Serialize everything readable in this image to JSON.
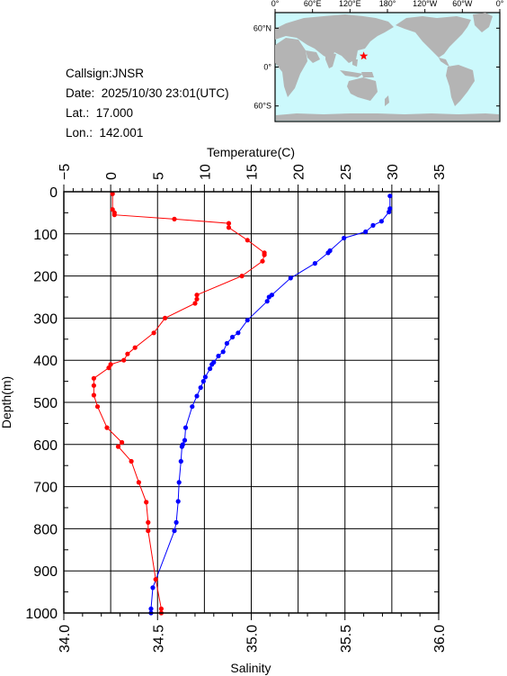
{
  "info": {
    "callsign": "Callsign:JNSR",
    "date": "Date:  2025/10/30 23:01(UTC)",
    "lat": "Lat.:  17.000",
    "lon": "Lon.:  142.001"
  },
  "map": {
    "lon_labels": [
      "0°",
      "60°E",
      "120°E",
      "180°",
      "120°W",
      "60°W",
      "0°"
    ],
    "lat_labels": [
      "60°N",
      "0°",
      "60°S"
    ],
    "station": {
      "lat": 17.0,
      "lon": 142.001
    },
    "colors": {
      "ocean": "#ccf9fc",
      "land": "#b4b4b4",
      "marker": "#ff0000"
    }
  },
  "chart_data": {
    "type": "line",
    "xlabel_top": "Temperature(C)",
    "xlabel_bottom": "Salinity",
    "ylabel": "Depth(m)",
    "depth_range": [
      0,
      1000
    ],
    "temperature_range": [
      -5,
      35
    ],
    "salinity_range": [
      34.0,
      36.0
    ],
    "depth_ticks": [
      0,
      100,
      200,
      300,
      400,
      500,
      600,
      700,
      800,
      900,
      1000
    ],
    "temperature_ticks": [
      -5,
      0,
      5,
      10,
      15,
      20,
      25,
      30,
      35
    ],
    "salinity_ticks": [
      "34.0",
      "34.5",
      "35.0",
      "35.5",
      "36.0"
    ],
    "grid": true,
    "series": [
      {
        "name": "Temperature",
        "axis": "temperature",
        "color": "#0000ff",
        "depth": [
          10,
          40,
          48,
          70,
          80,
          95,
          110,
          140,
          145,
          170,
          205,
          245,
          250,
          260,
          305,
          335,
          345,
          360,
          380,
          390,
          405,
          410,
          420,
          440,
          450,
          465,
          485,
          510,
          560,
          590,
          600,
          605,
          640,
          690,
          735,
          785,
          805,
          940,
          990,
          1000
        ],
        "values": [
          29.8,
          29.8,
          29.7,
          28.9,
          28.0,
          27.2,
          24.9,
          23.4,
          23.2,
          21.8,
          19.2,
          17.2,
          16.9,
          16.7,
          14.6,
          13.6,
          13.0,
          12.4,
          12.0,
          11.5,
          11.0,
          10.8,
          10.6,
          10.1,
          9.9,
          9.6,
          9.2,
          8.7,
          8.0,
          7.9,
          7.7,
          7.6,
          7.5,
          7.3,
          7.2,
          7.0,
          6.8,
          4.5,
          4.3,
          4.3
        ]
      },
      {
        "name": "Salinity",
        "axis": "salinity",
        "color": "#ff0000",
        "depth": [
          5,
          42,
          50,
          55,
          65,
          75,
          85,
          115,
          145,
          150,
          165,
          200,
          245,
          255,
          265,
          300,
          335,
          370,
          385,
          400,
          410,
          418,
          443,
          460,
          483,
          510,
          560,
          595,
          605,
          640,
          690,
          737,
          785,
          805,
          920,
          990,
          1000
        ],
        "values": [
          34.26,
          34.26,
          34.27,
          34.27,
          34.59,
          34.88,
          34.88,
          34.98,
          35.07,
          35.07,
          35.06,
          34.95,
          34.71,
          34.71,
          34.7,
          34.54,
          34.48,
          34.38,
          34.34,
          34.32,
          34.25,
          34.24,
          34.16,
          34.16,
          34.16,
          34.18,
          34.23,
          34.31,
          34.29,
          34.36,
          34.4,
          34.44,
          34.45,
          34.45,
          34.49,
          34.52,
          34.52
        ]
      }
    ]
  }
}
